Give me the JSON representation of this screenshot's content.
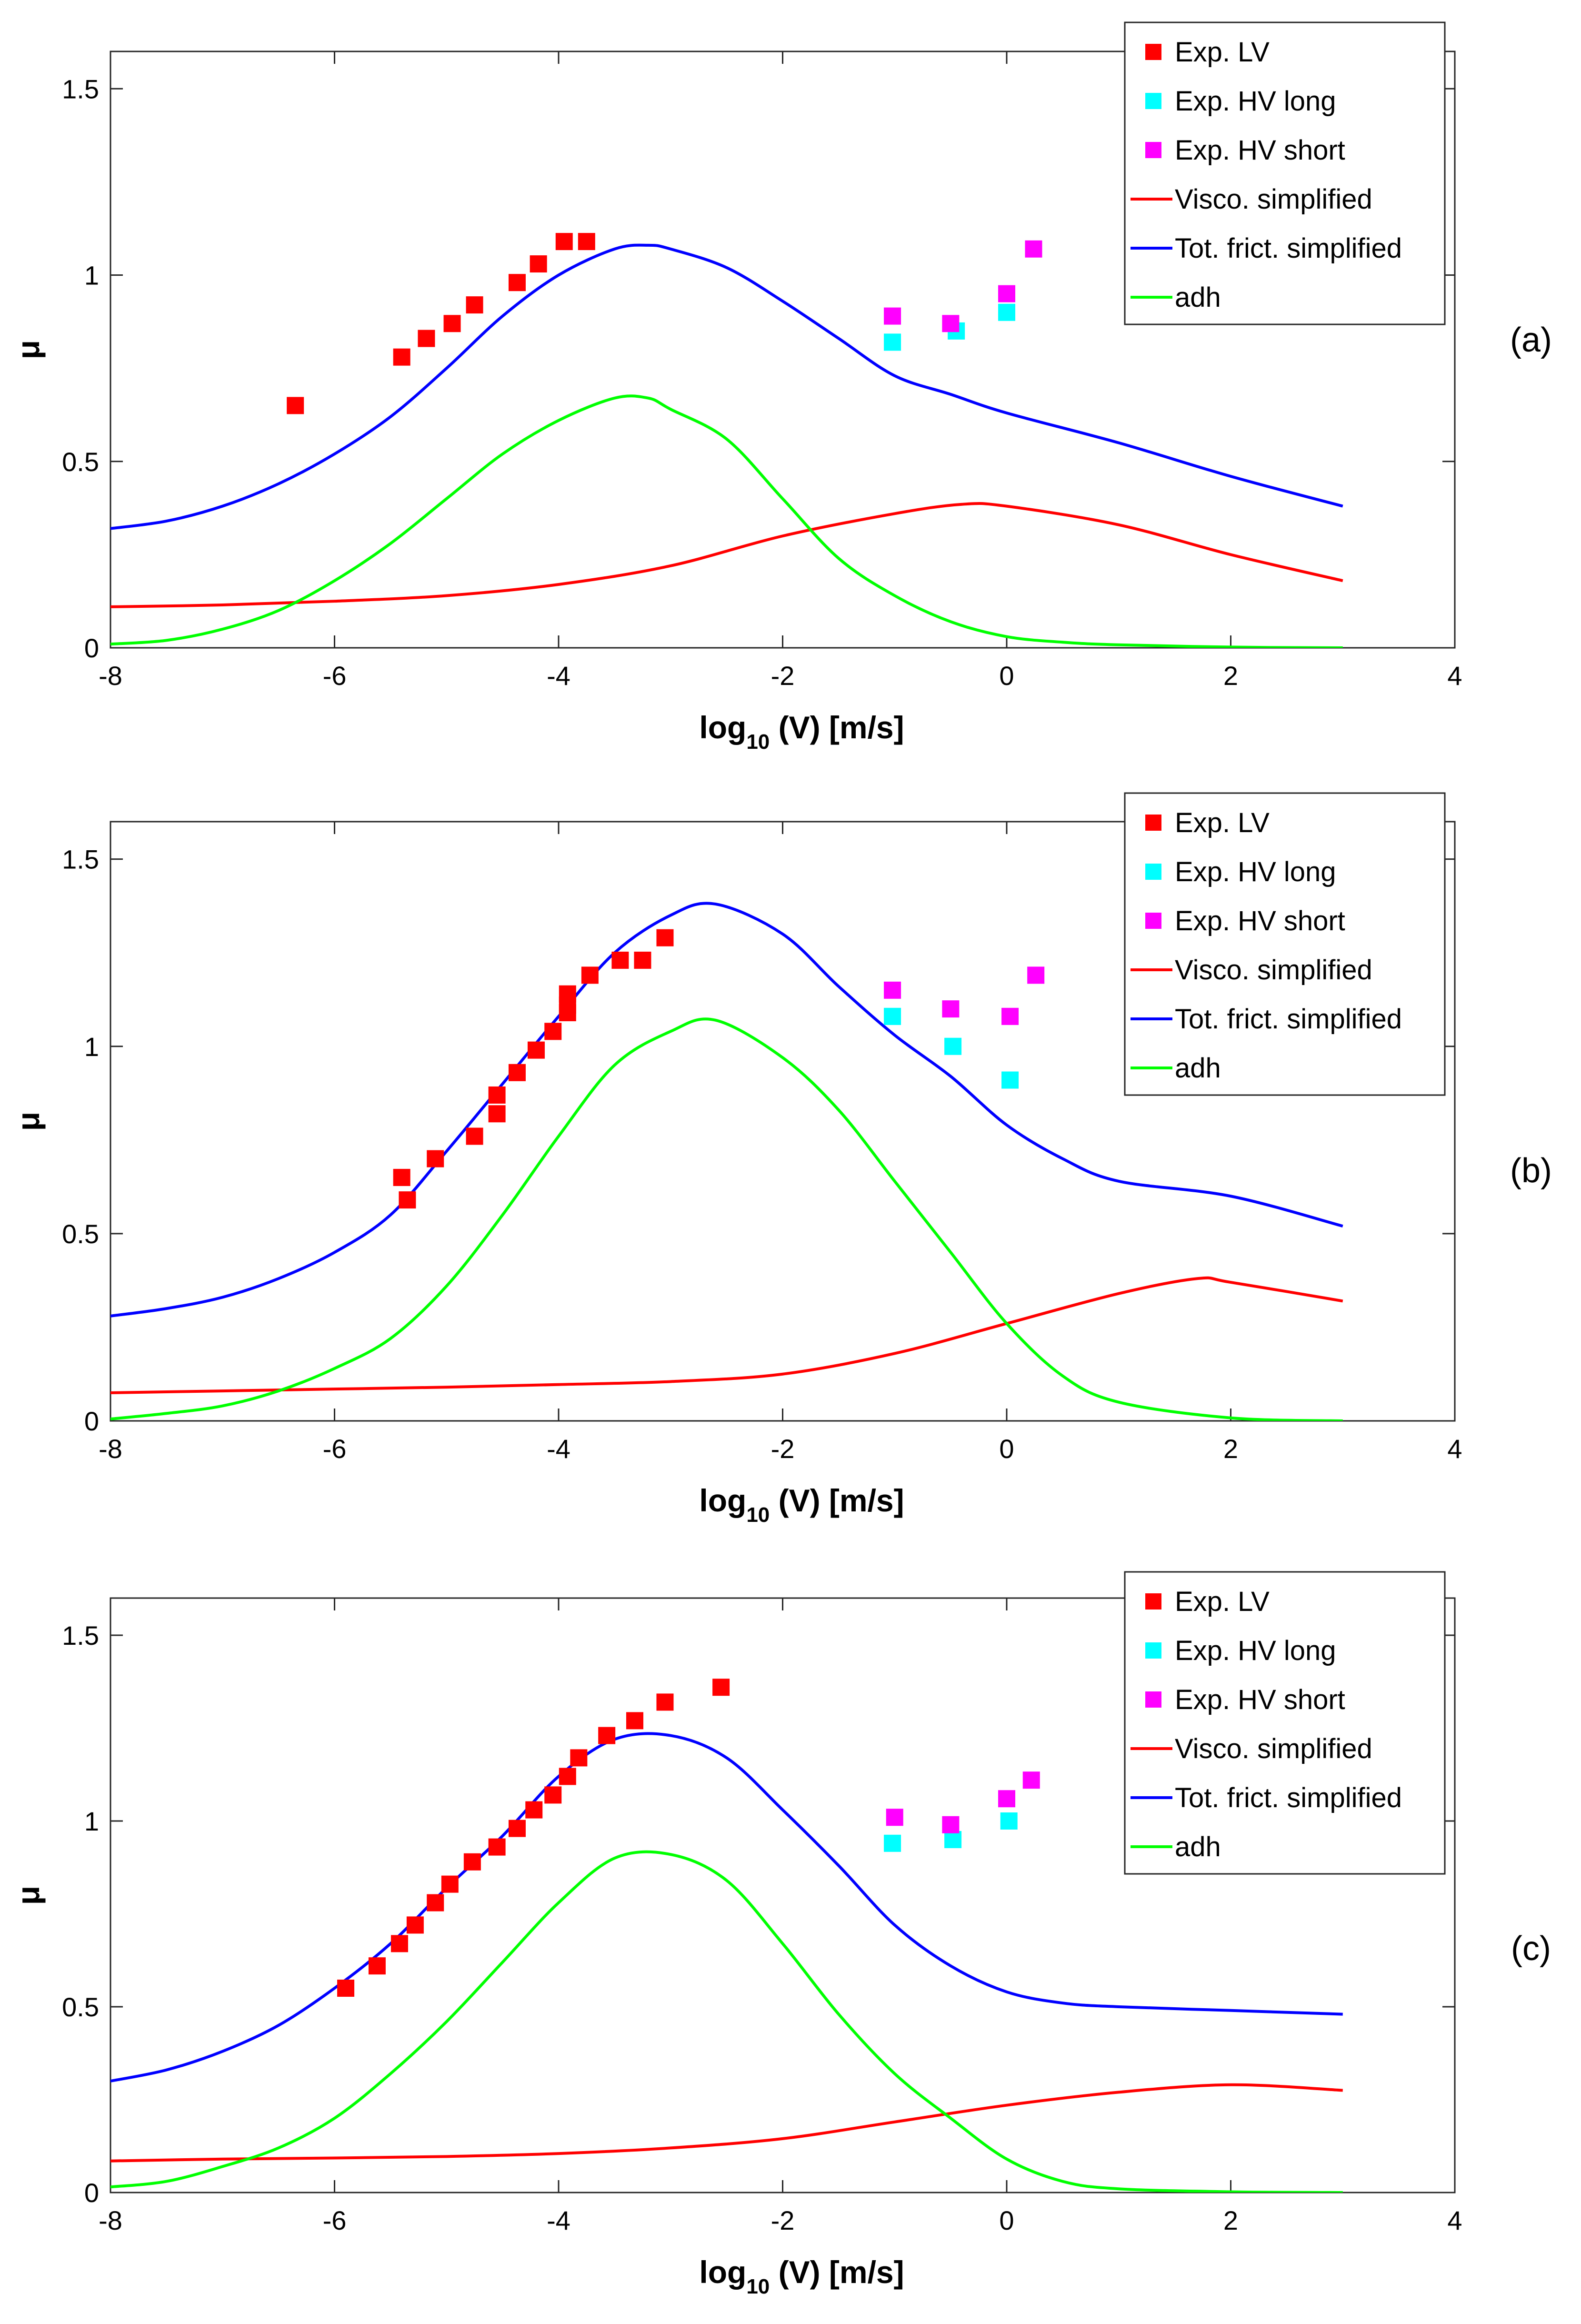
{
  "figure": {
    "panels": [
      {
        "label": "(a)",
        "chart_data": {
          "type": "line",
          "title": "",
          "xlabel": "log",
          "xlabel_sub": "10",
          "xlabel_rest": " (V) [m/s]",
          "ylabel": "μ",
          "xlim": [
            -8,
            4
          ],
          "ylim": [
            0,
            1.6
          ],
          "xticks": [
            -8,
            -6,
            -4,
            -2,
            0,
            2,
            4
          ],
          "xtick_labels": [
            "-8",
            "-6",
            "-4",
            "-2",
            "0",
            "2",
            "4"
          ],
          "yticks": [
            0,
            0.5,
            1,
            1.5
          ],
          "ytick_labels": [
            "0",
            "0.5",
            "1",
            "1.5"
          ],
          "grid": false,
          "legend_position": "top-right",
          "series": [
            {
              "name": "Exp. LV",
              "kind": "scatter",
              "color": "#ff0000",
              "x": [
                -6.35,
                -5.4,
                -5.18,
                -4.95,
                -4.75,
                -4.37,
                -4.18,
                -3.95,
                -3.75
              ],
              "y": [
                0.65,
                0.78,
                0.83,
                0.87,
                0.92,
                0.98,
                1.03,
                1.09,
                1.09
              ]
            },
            {
              "name": "Exp. HV long",
              "kind": "scatter",
              "color": "#00ffff",
              "x": [
                -1.02,
                -0.45,
                0.0
              ],
              "y": [
                0.82,
                0.85,
                0.9
              ]
            },
            {
              "name": "Exp. HV short",
              "kind": "scatter",
              "color": "#ff00ff",
              "x": [
                -1.02,
                -0.5,
                0.0,
                0.24
              ],
              "y": [
                0.89,
                0.87,
                0.95,
                1.07
              ]
            },
            {
              "name": "Visco. simplified",
              "kind": "line",
              "color": "#ff0000",
              "x": [
                -8,
                -7,
                -6,
                -5,
                -4,
                -3,
                -2,
                -1,
                -0.4,
                0,
                1,
                2,
                3
              ],
              "y": [
                0.11,
                0.115,
                0.125,
                0.14,
                0.17,
                0.22,
                0.3,
                0.36,
                0.385,
                0.38,
                0.33,
                0.25,
                0.18
              ]
            },
            {
              "name": "Tot. frict. simplified",
              "kind": "line",
              "color": "#0000ff",
              "x": [
                -8,
                -7.5,
                -7,
                -6.5,
                -6,
                -5.5,
                -5,
                -4.5,
                -4,
                -3.5,
                -3.2,
                -3,
                -2.5,
                -2,
                -1.5,
                -1,
                -0.5,
                0,
                1,
                2,
                3
              ],
              "y": [
                0.32,
                0.34,
                0.38,
                0.44,
                0.52,
                0.62,
                0.75,
                0.89,
                1.0,
                1.07,
                1.08,
                1.07,
                1.02,
                0.93,
                0.83,
                0.73,
                0.68,
                0.63,
                0.55,
                0.46,
                0.38
              ]
            },
            {
              "name": "adh",
              "kind": "line",
              "color": "#00ff00",
              "x": [
                -8,
                -7.5,
                -7,
                -6.5,
                -6,
                -5.5,
                -5,
                -4.5,
                -4,
                -3.5,
                -3.2,
                -3,
                -2.5,
                -2,
                -1.5,
                -1,
                -0.5,
                0,
                0.5,
                1,
                2,
                3
              ],
              "y": [
                0.01,
                0.02,
                0.05,
                0.1,
                0.18,
                0.28,
                0.4,
                0.52,
                0.61,
                0.67,
                0.67,
                0.64,
                0.56,
                0.4,
                0.24,
                0.14,
                0.07,
                0.03,
                0.015,
                0.008,
                0.002,
                0.0
              ]
            }
          ]
        }
      },
      {
        "label": "(b)",
        "chart_data": {
          "type": "line",
          "title": "",
          "xlabel": "log",
          "xlabel_sub": "10",
          "xlabel_rest": " (V) [m/s]",
          "ylabel": "μ",
          "xlim": [
            -8,
            4
          ],
          "ylim": [
            0,
            1.6
          ],
          "xticks": [
            -8,
            -6,
            -4,
            -2,
            0,
            2,
            4
          ],
          "xtick_labels": [
            "-8",
            "-6",
            "-4",
            "-2",
            "0",
            "2",
            "4"
          ],
          "yticks": [
            0,
            0.5,
            1,
            1.5
          ],
          "ytick_labels": [
            "0",
            "0.5",
            "1",
            "1.5"
          ],
          "grid": false,
          "legend_position": "top-right",
          "series": [
            {
              "name": "Exp. LV",
              "kind": "scatter",
              "color": "#ff0000",
              "x": [
                -5.4,
                -5.35,
                -5.1,
                -4.75,
                -4.55,
                -4.55,
                -4.37,
                -4.2,
                -4.05,
                -3.92,
                -3.92,
                -3.92,
                -3.72,
                -3.45,
                -3.25,
                -3.05
              ],
              "y": [
                0.65,
                0.59,
                0.7,
                0.76,
                0.82,
                0.87,
                0.93,
                0.99,
                1.04,
                1.09,
                1.11,
                1.14,
                1.19,
                1.23,
                1.23,
                1.29
              ]
            },
            {
              "name": "Exp. HV long",
              "kind": "scatter",
              "color": "#00ffff",
              "x": [
                -1.02,
                -0.48,
                0.03
              ],
              "y": [
                1.08,
                1.0,
                0.91
              ]
            },
            {
              "name": "Exp. HV short",
              "kind": "scatter",
              "color": "#ff00ff",
              "x": [
                -1.02,
                -0.5,
                0.03,
                0.26
              ],
              "y": [
                1.15,
                1.1,
                1.08,
                1.19
              ]
            },
            {
              "name": "Visco. simplified",
              "kind": "line",
              "color": "#ff0000",
              "x": [
                -8,
                -7,
                -6,
                -5,
                -4,
                -3,
                -2,
                -1,
                0,
                1,
                1.7,
                2,
                3
              ],
              "y": [
                0.075,
                0.08,
                0.085,
                0.09,
                0.097,
                0.105,
                0.125,
                0.18,
                0.26,
                0.34,
                0.38,
                0.37,
                0.32
              ]
            },
            {
              "name": "Tot. frict. simplified",
              "kind": "line",
              "color": "#0000ff",
              "x": [
                -8,
                -7.5,
                -7,
                -6.5,
                -6,
                -5.5,
                -5,
                -4.5,
                -4,
                -3.5,
                -3,
                -2.6,
                -2,
                -1.5,
                -1,
                -0.5,
                0,
                0.5,
                1,
                2,
                3
              ],
              "y": [
                0.28,
                0.3,
                0.33,
                0.38,
                0.45,
                0.55,
                0.72,
                0.9,
                1.08,
                1.25,
                1.35,
                1.38,
                1.3,
                1.16,
                1.03,
                0.92,
                0.79,
                0.7,
                0.64,
                0.6,
                0.52
              ]
            },
            {
              "name": "adh",
              "kind": "line",
              "color": "#00ff00",
              "x": [
                -8,
                -7.5,
                -7,
                -6.5,
                -6,
                -5.5,
                -5,
                -4.5,
                -4,
                -3.5,
                -3,
                -2.6,
                -2,
                -1.5,
                -1,
                -0.5,
                0,
                0.5,
                1,
                2,
                3
              ],
              "y": [
                0.005,
                0.02,
                0.04,
                0.08,
                0.14,
                0.22,
                0.36,
                0.55,
                0.76,
                0.95,
                1.04,
                1.07,
                0.97,
                0.83,
                0.64,
                0.45,
                0.26,
                0.12,
                0.05,
                0.008,
                0.0
              ]
            }
          ]
        }
      },
      {
        "label": "(c)",
        "chart_data": {
          "type": "line",
          "title": "",
          "xlabel": "log",
          "xlabel_sub": "10",
          "xlabel_rest": " (V) [m/s]",
          "ylabel": "μ",
          "xlim": [
            -8,
            4
          ],
          "ylim": [
            0,
            1.6
          ],
          "xticks": [
            -8,
            -6,
            -4,
            -2,
            0,
            2,
            4
          ],
          "xtick_labels": [
            "-8",
            "-6",
            "-4",
            "-2",
            "0",
            "2",
            "4"
          ],
          "yticks": [
            0,
            0.5,
            1,
            1.5
          ],
          "ytick_labels": [
            "0",
            "0.5",
            "1",
            "1.5"
          ],
          "grid": false,
          "legend_position": "top-right",
          "series": [
            {
              "name": "Exp. LV",
              "kind": "scatter",
              "color": "#ff0000",
              "x": [
                -5.9,
                -5.62,
                -5.42,
                -5.28,
                -5.1,
                -4.97,
                -4.77,
                -4.55,
                -4.37,
                -4.22,
                -4.05,
                -3.92,
                -3.82,
                -3.57,
                -3.32,
                -3.05,
                -2.55
              ],
              "y": [
                0.55,
                0.61,
                0.67,
                0.72,
                0.78,
                0.83,
                0.89,
                0.93,
                0.98,
                1.03,
                1.07,
                1.12,
                1.17,
                1.23,
                1.27,
                1.32,
                1.36
              ]
            },
            {
              "name": "Exp. HV long",
              "kind": "scatter",
              "color": "#00ffff",
              "x": [
                -1.02,
                -0.48,
                0.02
              ],
              "y": [
                0.94,
                0.95,
                1.0
              ]
            },
            {
              "name": "Exp. HV short",
              "kind": "scatter",
              "color": "#ff00ff",
              "x": [
                -1.0,
                -0.5,
                0.0,
                0.22
              ],
              "y": [
                1.01,
                0.99,
                1.06,
                1.11
              ]
            },
            {
              "name": "Visco. simplified",
              "kind": "line",
              "color": "#ff0000",
              "x": [
                -8,
                -7,
                -6,
                -5,
                -4,
                -3,
                -2,
                -1,
                0,
                1,
                2,
                3
              ],
              "y": [
                0.085,
                0.09,
                0.093,
                0.097,
                0.105,
                0.12,
                0.145,
                0.19,
                0.235,
                0.27,
                0.29,
                0.275
              ]
            },
            {
              "name": "Tot. frict. simplified",
              "kind": "line",
              "color": "#0000ff",
              "x": [
                -8,
                -7.5,
                -7,
                -6.5,
                -6,
                -5.5,
                -5,
                -4.5,
                -4,
                -3.5,
                -3,
                -2.5,
                -2,
                -1.5,
                -1,
                -0.5,
                0,
                0.5,
                1,
                2,
                3
              ],
              "y": [
                0.3,
                0.33,
                0.38,
                0.45,
                0.55,
                0.67,
                0.82,
                0.96,
                1.12,
                1.22,
                1.23,
                1.17,
                1.03,
                0.88,
                0.72,
                0.61,
                0.54,
                0.51,
                0.5,
                0.49,
                0.48
              ]
            },
            {
              "name": "adh",
              "kind": "line",
              "color": "#00ff00",
              "x": [
                -8,
                -7.5,
                -7,
                -6.5,
                -6,
                -5.5,
                -5,
                -4.5,
                -4,
                -3.5,
                -3,
                -2.5,
                -2,
                -1.5,
                -1,
                -0.5,
                0,
                0.5,
                1,
                2,
                3
              ],
              "y": [
                0.015,
                0.03,
                0.07,
                0.12,
                0.2,
                0.32,
                0.46,
                0.62,
                0.78,
                0.9,
                0.91,
                0.84,
                0.67,
                0.48,
                0.32,
                0.2,
                0.09,
                0.03,
                0.01,
                0.002,
                0.0
              ]
            }
          ]
        }
      }
    ]
  }
}
